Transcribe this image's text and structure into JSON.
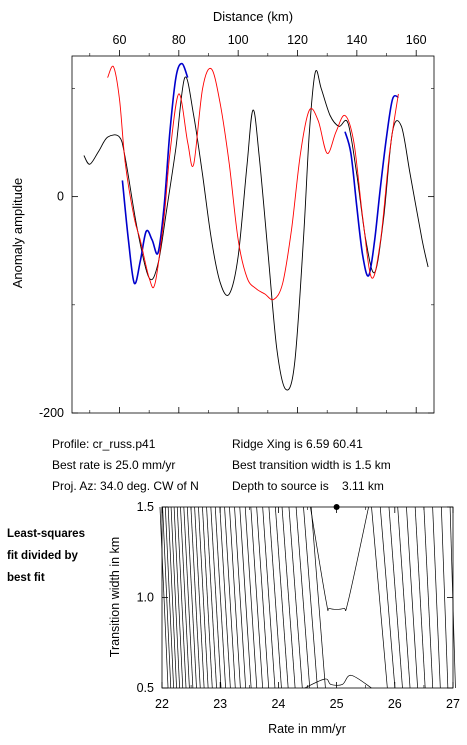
{
  "info": {
    "profile": "Profile: cr_russ.p41",
    "ridge": "Ridge Xing is 6.59 60.41",
    "rate": "Best rate is 25.0 mm/yr",
    "transition": "Best transition width is 1.5 km",
    "projaz": "Proj. Az: 34.0 deg. CW of N",
    "depth": "Depth to source is    3.11 km"
  },
  "side_note": [
    "Least-squares",
    "fit divided by",
    "best fit"
  ],
  "chart_data": [
    {
      "type": "line",
      "title": "",
      "xlabel": "Distance (km)",
      "ylabel": "Anomaly amplitude",
      "xlim": [
        44,
        166
      ],
      "ylim": [
        -200,
        130
      ],
      "x_ticks": [
        60,
        80,
        100,
        120,
        140,
        160
      ],
      "y_ticks": [
        0,
        -200
      ],
      "grid": false,
      "series": [
        {
          "color": "#000000",
          "x": [
            48,
            50,
            53,
            56,
            60,
            62,
            66,
            70,
            73,
            76,
            79,
            82,
            85,
            88,
            91,
            94,
            97,
            100,
            103,
            105,
            107,
            110,
            113,
            116,
            119,
            122,
            124,
            126,
            128,
            131,
            134,
            137,
            140,
            143,
            146,
            149,
            152,
            155,
            158,
            162,
            164
          ],
          "y": [
            38,
            30,
            42,
            55,
            55,
            35,
            -30,
            -75,
            -62,
            -10,
            45,
            110,
            75,
            20,
            -40,
            -80,
            -90,
            -55,
            30,
            80,
            40,
            -50,
            -140,
            -178,
            -155,
            -40,
            60,
            115,
            100,
            75,
            65,
            68,
            20,
            -40,
            -70,
            -20,
            60,
            65,
            20,
            -40,
            -65
          ]
        },
        {
          "color": "#0000cc",
          "x": [
            61,
            63,
            65,
            67,
            69,
            71,
            73,
            75,
            77,
            79,
            81,
            83
          ],
          "y": [
            15,
            -40,
            -80,
            -60,
            -32,
            -40,
            -52,
            -10,
            60,
            110,
            123,
            110
          ]
        },
        {
          "color": "#0000cc",
          "x": [
            136,
            138,
            140,
            142,
            144,
            146,
            148,
            150,
            152,
            154
          ],
          "y": [
            60,
            40,
            -10,
            -55,
            -73,
            -40,
            10,
            55,
            90,
            92
          ]
        },
        {
          "color": "#ff0000",
          "x": [
            56,
            58,
            60,
            62,
            65,
            67,
            70,
            72,
            75,
            77,
            80,
            83,
            85,
            88,
            91,
            94,
            97,
            100,
            103,
            106,
            109,
            112,
            115,
            118,
            121,
            124,
            127,
            130,
            133,
            136,
            139,
            142,
            145,
            148,
            151,
            154
          ],
          "y": [
            110,
            120,
            90,
            30,
            -20,
            -40,
            -75,
            -80,
            -20,
            40,
            95,
            50,
            30,
            100,
            118,
            85,
            30,
            -40,
            -75,
            -85,
            -90,
            -95,
            -80,
            -30,
            40,
            80,
            70,
            40,
            60,
            75,
            50,
            -20,
            -75,
            -40,
            40,
            95
          ]
        }
      ]
    },
    {
      "type": "contour",
      "title": "",
      "xlabel": "Rate in mm/yr",
      "ylabel": "Transition width in km",
      "xlim": [
        22,
        27
      ],
      "ylim": [
        0.5,
        1.5
      ],
      "x_ticks": [
        22,
        23,
        24,
        25,
        26,
        27
      ],
      "y_ticks": [
        0.5,
        1.0,
        1.5
      ],
      "best_fit": {
        "rate": 25.0,
        "width": 1.5
      },
      "grid": false,
      "contour_note": "dense near-vertical contour lines left of best fit, closed trough around rate 25"
    }
  ]
}
